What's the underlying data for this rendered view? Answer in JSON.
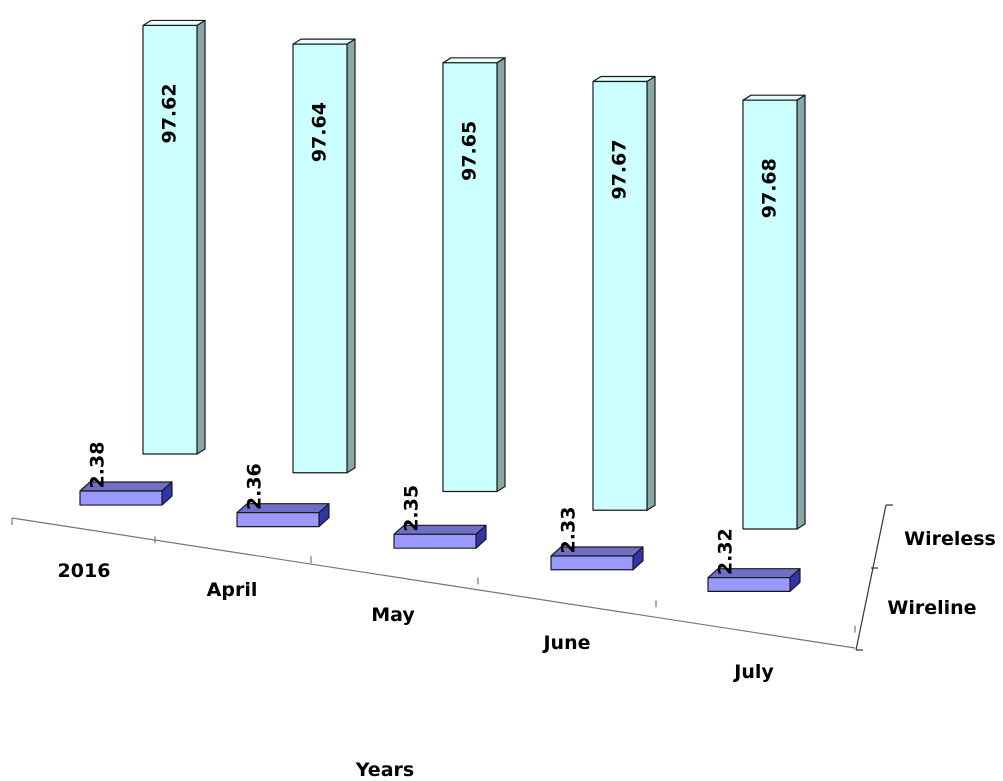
{
  "chart_data": {
    "type": "bar",
    "categories": [
      "2016",
      "April",
      "May",
      "June",
      "July"
    ],
    "series": [
      {
        "name": "Wireless",
        "values": [
          97.62,
          97.64,
          97.65,
          97.67,
          97.68
        ],
        "labels": [
          "97.62",
          "97.64",
          "97.65",
          "97.67",
          "97.68"
        ]
      },
      {
        "name": "Wireline",
        "values": [
          2.38,
          2.36,
          2.35,
          2.33,
          2.32
        ],
        "labels": [
          "2.38",
          "2.36",
          "2.35",
          "2.33",
          "2.32"
        ]
      }
    ],
    "title": "",
    "xlabel": "Years",
    "ylabel": "",
    "ylim": [
      0,
      100
    ],
    "three_d": true,
    "colors": {
      "Wireless": {
        "front": "#ccffff",
        "side": "#88a8a8",
        "top": "#e6ffff"
      },
      "Wireline": {
        "front": "#9999ff",
        "side": "#3333aa",
        "top": "#6f6fc8"
      }
    },
    "gridlines": false,
    "legend": "none"
  }
}
